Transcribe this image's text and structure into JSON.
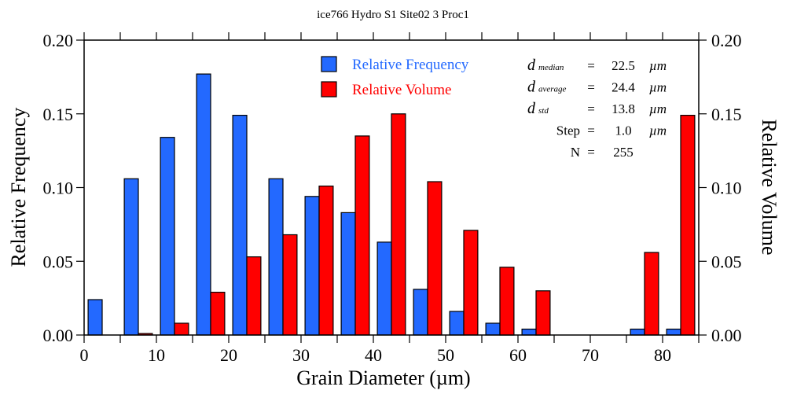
{
  "chart_data": {
    "type": "bar",
    "title": "ice766 Hydro S1 Site02 3 Proc1",
    "xlabel": "Grain Diameter (µm)",
    "ylabel": "Relative Frequency",
    "y2label": "Relative Volume",
    "xlim": [
      0,
      85
    ],
    "ylim": [
      0,
      0.2
    ],
    "y2lim": [
      0,
      0.2
    ],
    "xticks": [
      0,
      10,
      20,
      30,
      40,
      50,
      60,
      70,
      80
    ],
    "yticks": [
      "0.00",
      "0.05",
      "0.10",
      "0.15",
      "0.20"
    ],
    "bin_width": 5,
    "bin_centers": [
      2.5,
      7.5,
      12.5,
      17.5,
      22.5,
      27.5,
      32.5,
      37.5,
      42.5,
      47.5,
      52.5,
      57.5,
      62.5,
      67.5,
      72.5,
      77.5,
      82.5
    ],
    "series": [
      {
        "name": "Relative Frequency",
        "color": "#2369ff",
        "values": [
          0.024,
          0.106,
          0.134,
          0.177,
          0.149,
          0.106,
          0.094,
          0.083,
          0.063,
          0.031,
          0.016,
          0.008,
          0.004,
          0,
          0,
          0.004,
          0.004
        ]
      },
      {
        "name": "Relative Volume",
        "color": "#ff0000",
        "values": [
          0,
          0.001,
          0.008,
          0.029,
          0.053,
          0.068,
          0.101,
          0.135,
          0.15,
          0.104,
          0.071,
          0.046,
          0.03,
          0,
          0,
          0.056,
          0.149
        ]
      }
    ],
    "legend": {
      "position": "top-center"
    },
    "grid": false,
    "stats": [
      {
        "symbol": "d",
        "sub": "median",
        "eq": "=",
        "value": "22.5",
        "unit": "µm"
      },
      {
        "symbol": "d",
        "sub": "average",
        "eq": "=",
        "value": "24.4",
        "unit": "µm"
      },
      {
        "symbol": "d",
        "sub": "std",
        "eq": "=",
        "value": "13.8",
        "unit": "µm"
      },
      {
        "symbol": "Step",
        "sub": "",
        "eq": "=",
        "value": "1.0",
        "unit": "µm"
      },
      {
        "symbol": "N",
        "sub": "",
        "eq": "=",
        "value": "255",
        "unit": ""
      }
    ]
  }
}
